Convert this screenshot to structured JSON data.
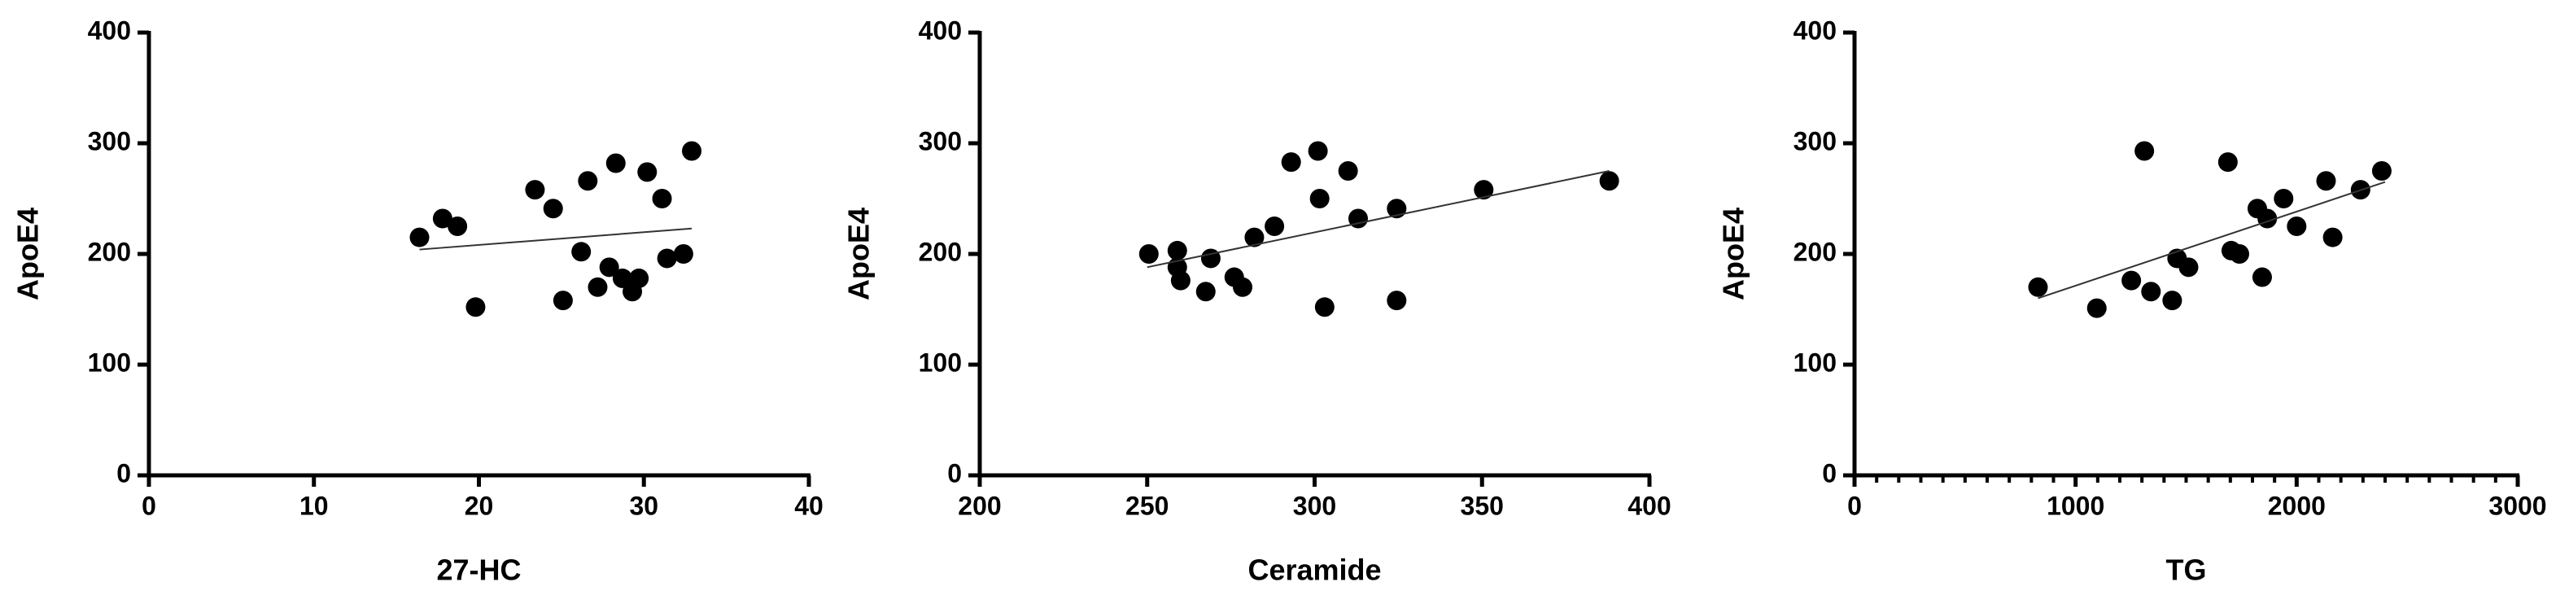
{
  "chart_data": [
    {
      "type": "scatter",
      "x_label": "27-HC",
      "y_label": "ApoE4",
      "color": "#000000",
      "x": [
        16.4,
        17.8,
        18.7,
        19.8,
        23.4,
        24.5,
        25.1,
        26.2,
        26.6,
        27.2,
        27.9,
        28.3,
        28.7,
        29.3,
        29.7,
        30.2,
        31.1,
        31.4,
        32.4,
        32.9
      ],
      "values": [
        215,
        232,
        225,
        152,
        258,
        241,
        158,
        202,
        266,
        170,
        188,
        282,
        178,
        166,
        178,
        274,
        250,
        196,
        200,
        293
      ],
      "fit_line": {
        "x": [
          16.4,
          32.9
        ],
        "y": [
          204,
          223
        ]
      },
      "xlim": [
        0,
        40
      ],
      "xticks": [
        0,
        10,
        20,
        30,
        40
      ],
      "ylim": [
        0,
        400
      ],
      "yticks": [
        0,
        100,
        200,
        300,
        400
      ]
    },
    {
      "type": "scatter",
      "x_label": "Ceramide",
      "y_label": "ApoE4",
      "color": "#000000",
      "x": [
        250.5,
        259,
        259,
        260,
        267.5,
        269,
        276,
        278.5,
        282,
        288,
        293,
        301,
        301.5,
        303,
        310,
        313,
        324.5,
        324.5,
        350.5,
        388
      ],
      "values": [
        200,
        203,
        188,
        176,
        166,
        196,
        179,
        170,
        215,
        225,
        283,
        293,
        250,
        152,
        275,
        232,
        241,
        158,
        258,
        266
      ],
      "fit_line": {
        "x": [
          250,
          388
        ],
        "y": [
          188,
          275
        ]
      },
      "xlim": [
        200,
        400
      ],
      "xticks": [
        200,
        250,
        300,
        350,
        400
      ],
      "ylim": [
        0,
        400
      ],
      "yticks": [
        0,
        100,
        200,
        300,
        400
      ]
    },
    {
      "type": "scatter",
      "x_label": "TG",
      "y_label": "ApoE4",
      "color": "#000000",
      "x": [
        830,
        1096,
        1252,
        1311,
        1341,
        1437,
        1459,
        1511,
        1689,
        1704,
        1741,
        1822,
        1844,
        1867,
        1941,
        2000,
        2133,
        2163,
        2289,
        2385
      ],
      "values": [
        170,
        151,
        176,
        293,
        166,
        158,
        196,
        188,
        283,
        203,
        200,
        241,
        179,
        232,
        250,
        225,
        266,
        215,
        258,
        275
      ],
      "fit_line": {
        "x": [
          830,
          2400
        ],
        "y": [
          160,
          265
        ]
      },
      "xlim": [
        0,
        3000
      ],
      "xticks": [
        0,
        1000,
        2000,
        3000
      ],
      "x_minor_ticks": [
        100,
        200,
        300,
        400,
        500,
        600,
        700,
        800,
        900,
        1100,
        1200,
        1300,
        1400,
        1500,
        1600,
        1700,
        1800,
        1900,
        2100,
        2200,
        2300,
        2400,
        2500,
        2600,
        2700,
        2800,
        2900
      ],
      "ylim": [
        0,
        400
      ],
      "yticks": [
        0,
        100,
        200,
        300,
        400
      ]
    }
  ]
}
